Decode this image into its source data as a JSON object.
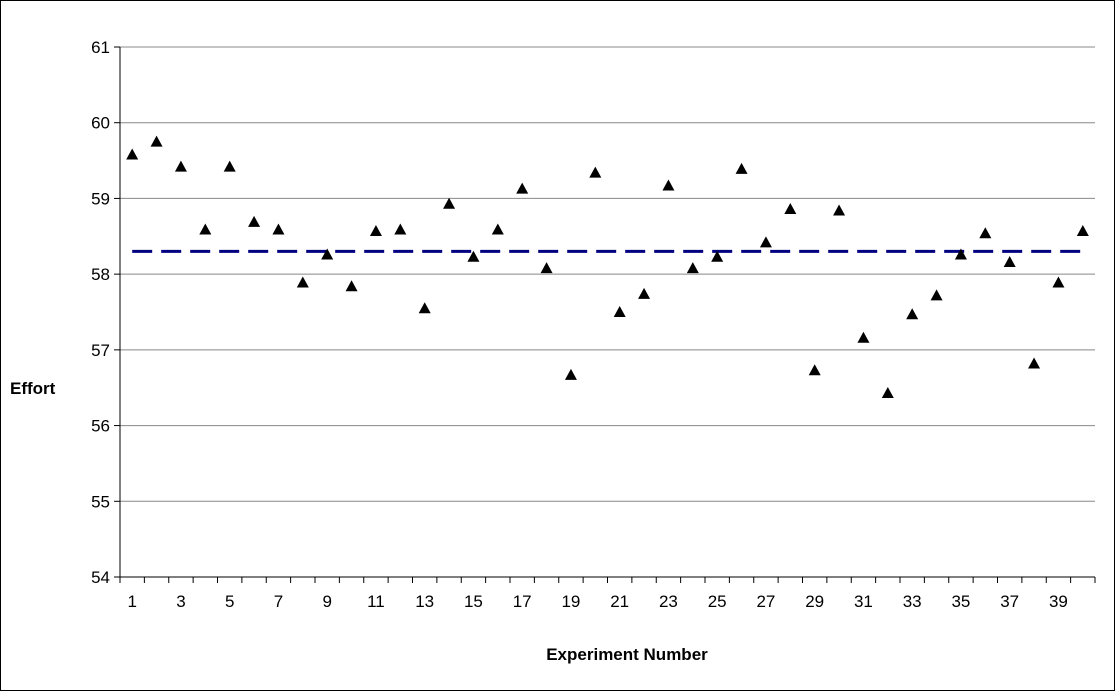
{
  "chart_data": {
    "type": "scatter",
    "title": "",
    "xlabel": "Experiment Number",
    "ylabel": "Effort",
    "ylim": [
      54,
      61
    ],
    "yticks": [
      "54",
      "55",
      "56",
      "57",
      "58",
      "59",
      "60",
      "61"
    ],
    "xticks": [
      "1",
      "3",
      "5",
      "7",
      "9",
      "11",
      "13",
      "15",
      "17",
      "19",
      "21",
      "23",
      "25",
      "27",
      "29",
      "31",
      "33",
      "35",
      "37",
      "39"
    ],
    "grid": true,
    "legend": "none",
    "marker": "triangle",
    "colors": {
      "points": "#000000",
      "mean_line": "#000080",
      "grid": "#888888"
    },
    "series": [
      {
        "x": [
          1,
          2,
          3,
          4,
          5,
          6,
          7,
          8,
          9,
          10,
          11,
          12,
          13,
          14,
          15,
          16,
          17,
          18,
          19,
          20,
          21,
          22,
          23,
          24,
          25,
          26,
          27,
          28,
          29,
          30,
          31,
          32,
          33,
          34,
          35,
          36,
          37,
          38,
          39,
          40
        ],
        "values": [
          59.58,
          59.75,
          59.42,
          58.59,
          59.42,
          58.69,
          58.59,
          57.89,
          58.26,
          57.84,
          58.57,
          58.59,
          57.55,
          58.93,
          58.23,
          58.59,
          59.13,
          58.08,
          56.67,
          59.34,
          57.5,
          57.74,
          59.17,
          58.08,
          58.23,
          59.39,
          58.42,
          58.86,
          56.73,
          58.84,
          57.16,
          56.43,
          57.47,
          57.72,
          58.26,
          58.54,
          58.16,
          56.82,
          57.89,
          58.57
        ]
      }
    ],
    "mean_line": {
      "y": 58.3,
      "style": "dashed"
    }
  }
}
